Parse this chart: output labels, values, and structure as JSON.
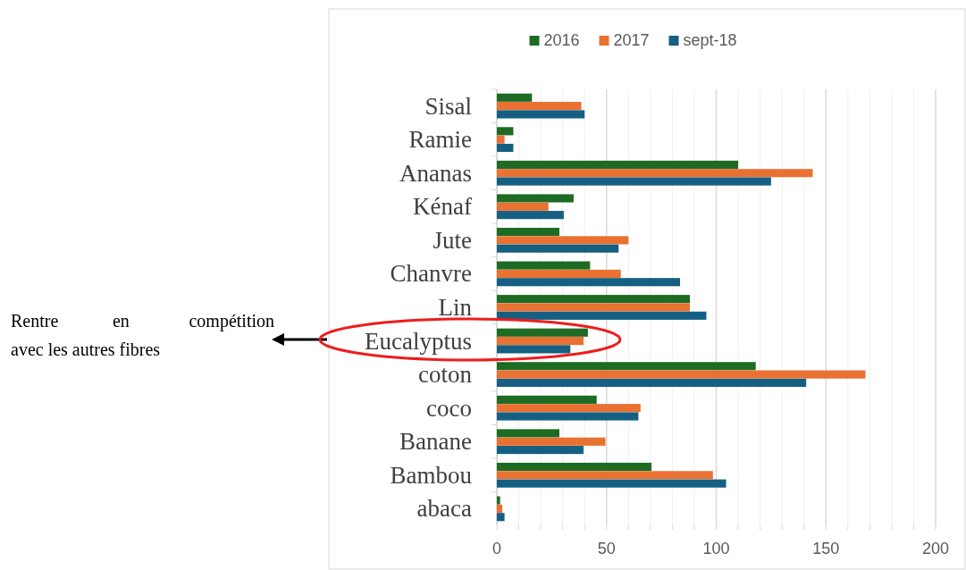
{
  "chart_data": {
    "type": "bar",
    "orientation": "horizontal",
    "categories": [
      "Sisal",
      "Ramie",
      "Ananas",
      "Kénaf",
      "Jute",
      "Chanvre",
      "Lin",
      "Eucalyptus",
      "coton",
      "coco",
      "Banane",
      "Bambou",
      "abaca"
    ],
    "series": [
      {
        "name": "2016",
        "color": "#1e6b24",
        "values": [
          16,
          7.5,
          110,
          35,
          28.5,
          42.5,
          88,
          41.5,
          118,
          45.5,
          28.5,
          70.5,
          1.5
        ]
      },
      {
        "name": "2017",
        "color": "#e97132",
        "values": [
          38.5,
          3.5,
          144,
          23.5,
          60,
          56.5,
          88,
          39.5,
          168,
          65.5,
          49.5,
          98.5,
          2.5
        ]
      },
      {
        "name": "sept-18",
        "color": "#156082",
        "values": [
          40,
          7.5,
          125,
          30.5,
          55.5,
          83.5,
          95.5,
          33.5,
          141,
          64.5,
          39.5,
          104.5,
          3.5
        ]
      }
    ],
    "xlim": [
      0,
      200
    ],
    "xticks": [
      0,
      {
        "value": 10,
        "label": null
      },
      {
        "value": 20,
        "label": null
      },
      {
        "value": 30,
        "label": null
      },
      {
        "value": 40,
        "label": null
      },
      50,
      {
        "value": 60,
        "label": null
      },
      {
        "value": 70,
        "label": null
      },
      {
        "value": 80,
        "label": null
      },
      {
        "value": 90,
        "label": null
      },
      100,
      {
        "value": 110,
        "label": null
      },
      {
        "value": 120,
        "label": null
      },
      {
        "value": 130,
        "label": null
      },
      {
        "value": 140,
        "label": null
      },
      150,
      {
        "value": 160,
        "label": null
      },
      {
        "value": 170,
        "label": null
      },
      {
        "value": 180,
        "label": null
      },
      {
        "value": 190,
        "label": null
      },
      200
    ],
    "grid": "x",
    "legend": "top",
    "annotations": [
      "Rentre en compétition avec les autres fibres"
    ]
  }
}
